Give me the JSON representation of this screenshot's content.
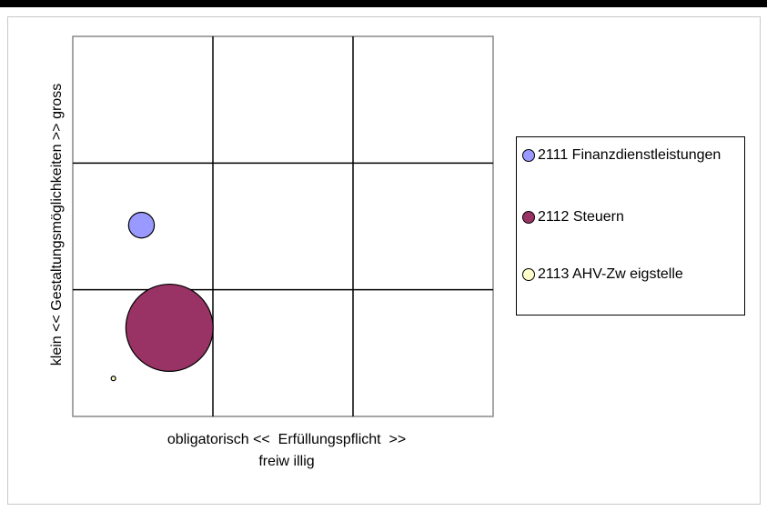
{
  "chart_data": {
    "type": "bubble",
    "y_label": "klein << Gestaltungsmöglichkeiten >> gross",
    "x_label": [
      "obligatorisch <<  Erfüllungspflicht  >>",
      "freiw illig"
    ],
    "xlim": [
      0,
      3
    ],
    "ylim": [
      0,
      3
    ],
    "xticks": [
      0,
      1,
      2,
      3
    ],
    "yticks": [
      0,
      1,
      2,
      3
    ],
    "grid": true,
    "legend": "right",
    "series": [
      {
        "name": "2111 Finanzdienstleistungen",
        "color": "#9999ff",
        "x": [
          0.49
        ],
        "y": [
          1.51
        ],
        "size": [
          20
        ]
      },
      {
        "name": "2112 Steuern",
        "color": "#993366",
        "x": [
          0.69
        ],
        "y": [
          0.7
        ],
        "size": [
          230
        ]
      },
      {
        "name": "2113 AHV-Zw eigstelle",
        "color": "#ffffcc",
        "x": [
          0.29
        ],
        "y": [
          0.3
        ],
        "size": [
          0.6
        ]
      }
    ]
  }
}
